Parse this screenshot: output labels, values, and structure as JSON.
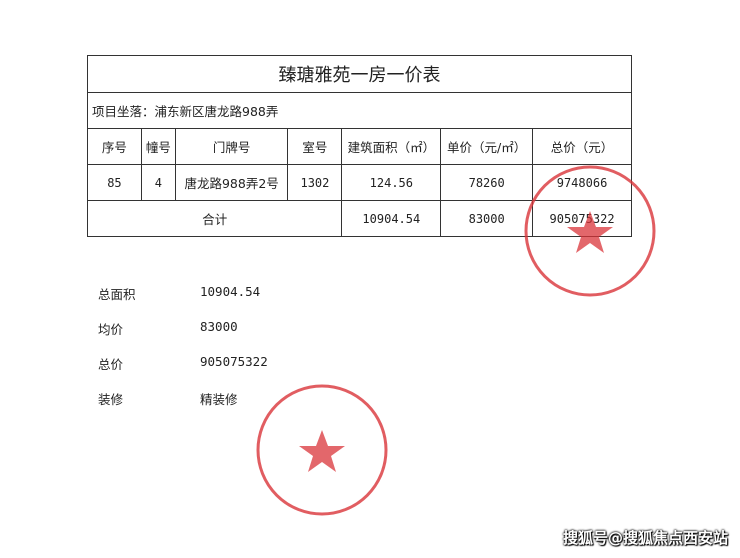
{
  "title": "臻瑭雅苑一房一价表",
  "location": "项目坐落：浦东新区唐龙路988弄",
  "headers": [
    "序号",
    "幢号",
    "门牌号",
    "室号",
    "建筑面积（㎡）",
    "单价（元/㎡）",
    "总价（元）"
  ],
  "row": [
    "85",
    "4",
    "唐龙路988弄2号",
    "1302",
    "124.56",
    "78260",
    "9748066"
  ],
  "total": {
    "label": "合计",
    "area": "10904.54",
    "unit_price": "83000",
    "total_price": "905075322"
  },
  "summary": [
    {
      "label": "总面积",
      "value": "10904.54"
    },
    {
      "label": "均价",
      "value": "83000"
    },
    {
      "label": "总价",
      "value": "905075322"
    },
    {
      "label": "装修",
      "value": "精装修"
    }
  ],
  "stamp_color": "#d9343a",
  "watermark": "搜狐号@搜狐焦点西安站"
}
